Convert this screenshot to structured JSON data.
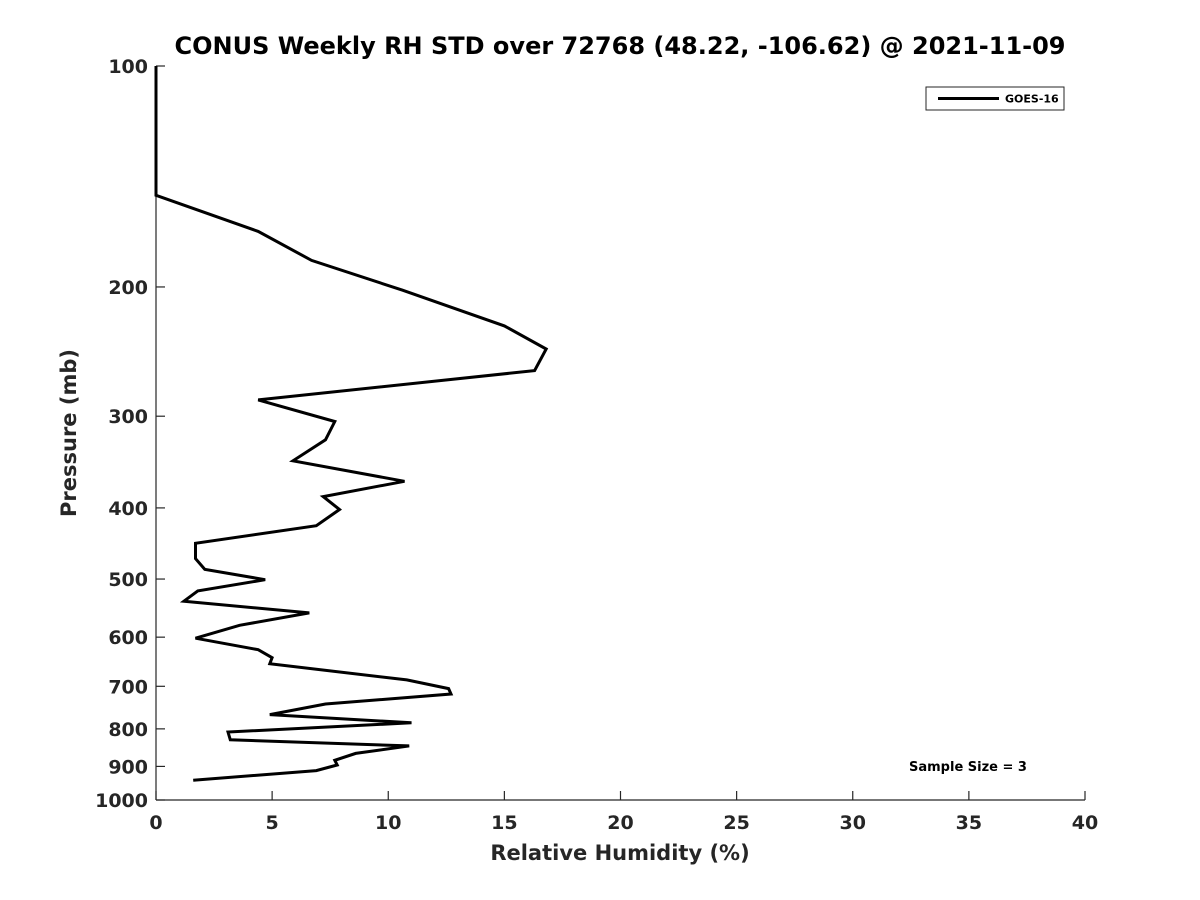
{
  "chart_data": {
    "type": "line",
    "title": "CONUS Weekly RH STD over 72768 (48.22, -106.62) @ 2021-11-09",
    "xlabel": "Relative Humidity (%)",
    "ylabel": "Pressure (mb)",
    "xlim": [
      0,
      40
    ],
    "ylim": [
      100,
      1000
    ],
    "yscale": "log",
    "yaxis_reversed": true,
    "grid": false,
    "legend_position": "top-right",
    "x_ticks": [
      "0",
      "5",
      "10",
      "15",
      "20",
      "25",
      "30",
      "35",
      "40"
    ],
    "x_tick_values": [
      0,
      5,
      10,
      15,
      20,
      25,
      30,
      35,
      40
    ],
    "y_ticks": [
      "100",
      "200",
      "300",
      "400",
      "500",
      "600",
      "700",
      "800",
      "900",
      "1000"
    ],
    "y_tick_values": [
      100,
      200,
      300,
      400,
      500,
      600,
      700,
      800,
      900,
      1000
    ],
    "annotation": "Sample Size = 3",
    "series": [
      {
        "name": "GOES-16",
        "color": "#000000",
        "points": [
          [
            0,
            100
          ],
          [
            0,
            150
          ],
          [
            4.4,
            168
          ],
          [
            6.7,
            184
          ],
          [
            10.6,
            202
          ],
          [
            15.0,
            226
          ],
          [
            16.8,
            243
          ],
          [
            16.3,
            260
          ],
          [
            4.4,
            285
          ],
          [
            7.7,
            305
          ],
          [
            7.3,
            323
          ],
          [
            5.9,
            345
          ],
          [
            10.7,
            368
          ],
          [
            7.2,
            386
          ],
          [
            7.9,
            402
          ],
          [
            6.9,
            423
          ],
          [
            1.7,
            447
          ],
          [
            1.7,
            469
          ],
          [
            2.1,
            485
          ],
          [
            4.7,
            501
          ],
          [
            1.8,
            519
          ],
          [
            1.2,
            536
          ],
          [
            6.6,
            556
          ],
          [
            3.6,
            578
          ],
          [
            1.7,
            602
          ],
          [
            4.4,
            624
          ],
          [
            5.0,
            640
          ],
          [
            4.9,
            652
          ],
          [
            10.8,
            686
          ],
          [
            12.6,
            705
          ],
          [
            12.7,
            717
          ],
          [
            7.3,
            740
          ],
          [
            4.9,
            765
          ],
          [
            11.0,
            785
          ],
          [
            3.1,
            808
          ],
          [
            3.2,
            828
          ],
          [
            10.9,
            844
          ],
          [
            8.6,
            864
          ],
          [
            7.7,
            883
          ],
          [
            7.8,
            896
          ],
          [
            6.9,
            912
          ],
          [
            1.6,
            940
          ]
        ]
      }
    ]
  }
}
